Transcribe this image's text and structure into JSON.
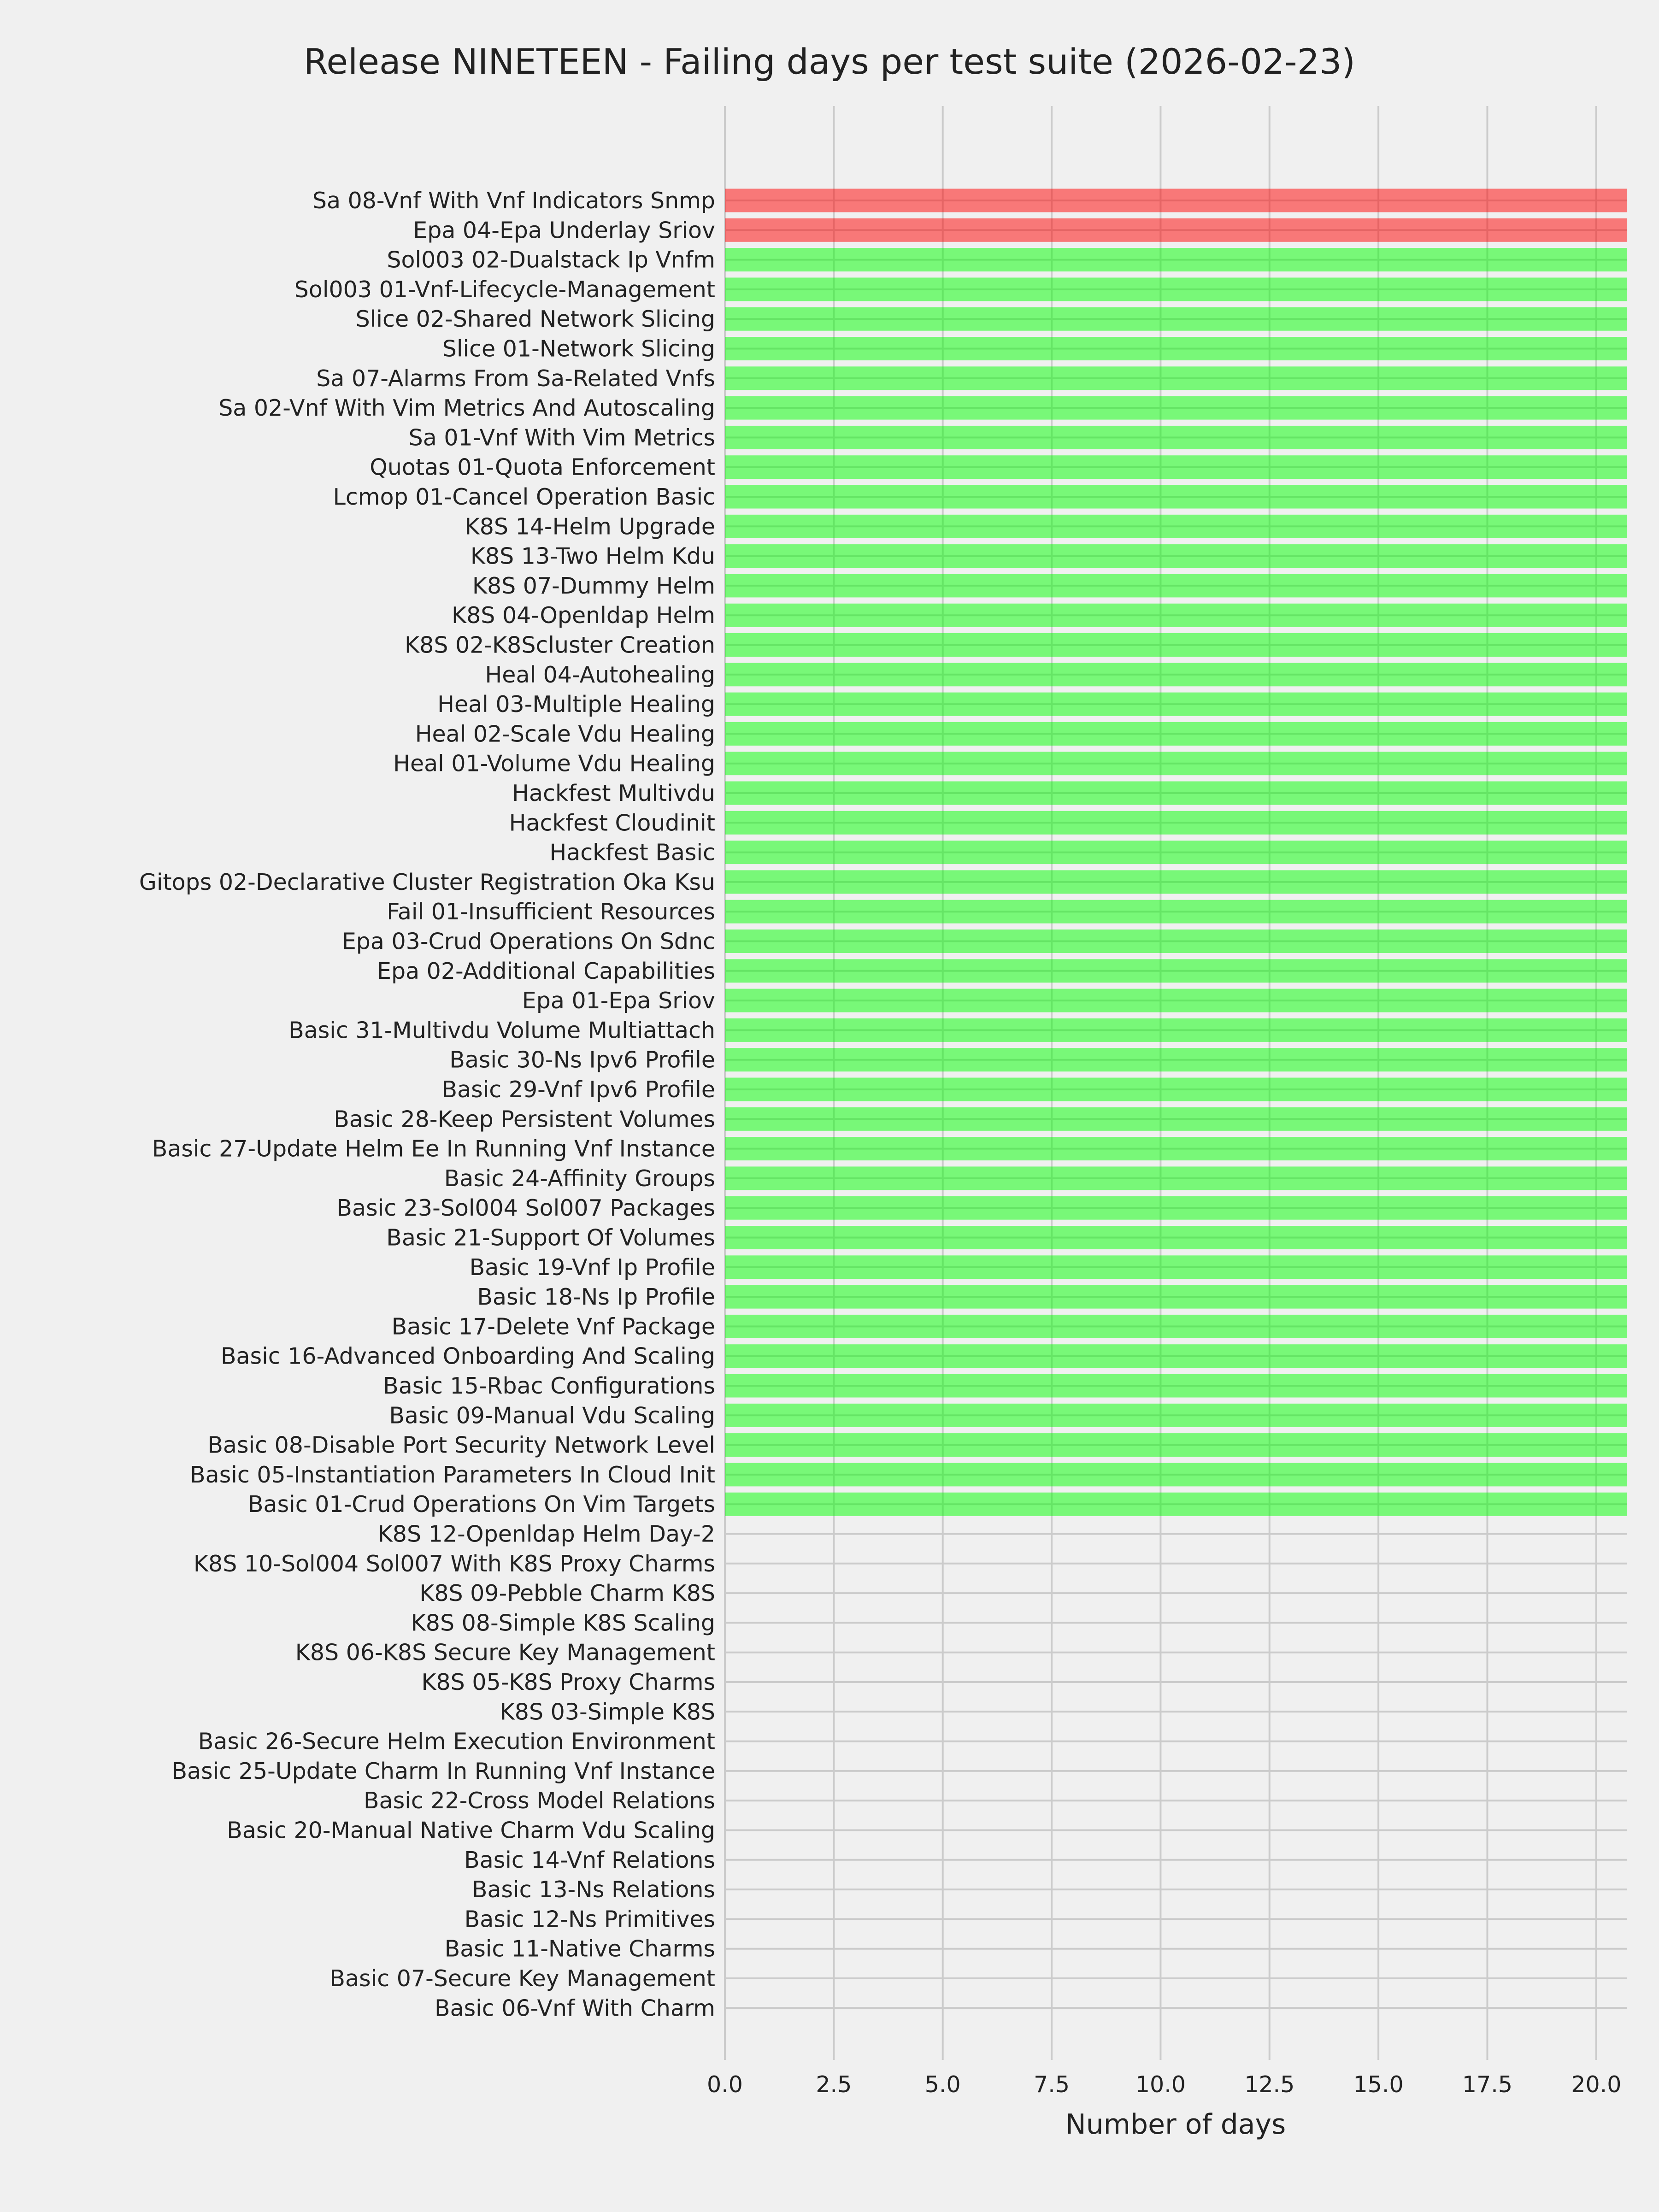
{
  "chart_data": {
    "type": "bar",
    "orientation": "horizontal",
    "title": "Release NINETEEN - Failing days per test suite (2026-02-23)",
    "xlabel": "Number of days",
    "ylabel": "",
    "xlim": [
      0,
      20.7
    ],
    "xticks": [
      "0.0",
      "2.5",
      "5.0",
      "7.5",
      "10.0",
      "12.5",
      "15.0",
      "17.5",
      "20.0"
    ],
    "grid": true,
    "colors": {
      "failing": "#f87878",
      "passing": "#78f878",
      "background": "#f0f0f0",
      "grid": "#cbcbcb"
    },
    "categories": [
      "Sa 08-Vnf With Vnf Indicators Snmp",
      "Epa 04-Epa Underlay Sriov",
      "Sol003 02-Dualstack Ip Vnfm",
      "Sol003 01-Vnf-Lifecycle-Management",
      "Slice 02-Shared Network Slicing",
      "Slice 01-Network Slicing",
      "Sa 07-Alarms From Sa-Related Vnfs",
      "Sa 02-Vnf With Vim Metrics And Autoscaling",
      "Sa 01-Vnf With Vim Metrics",
      "Quotas 01-Quota Enforcement",
      "Lcmop 01-Cancel Operation Basic",
      "K8S 14-Helm Upgrade",
      "K8S 13-Two Helm Kdu",
      "K8S 07-Dummy Helm",
      "K8S 04-Openldap Helm",
      "K8S 02-K8Scluster Creation",
      "Heal 04-Autohealing",
      "Heal 03-Multiple Healing",
      "Heal 02-Scale Vdu Healing",
      "Heal 01-Volume Vdu Healing",
      "Hackfest Multivdu",
      "Hackfest Cloudinit",
      "Hackfest Basic",
      "Gitops 02-Declarative Cluster Registration Oka Ksu",
      "Fail 01-Insufficient Resources",
      "Epa 03-Crud Operations On Sdnc",
      "Epa 02-Additional Capabilities",
      "Epa 01-Epa Sriov",
      "Basic 31-Multivdu Volume Multiattach",
      "Basic 30-Ns Ipv6 Profile",
      "Basic 29-Vnf Ipv6 Profile",
      "Basic 28-Keep Persistent Volumes",
      "Basic 27-Update Helm Ee In Running Vnf Instance",
      "Basic 24-Affinity Groups",
      "Basic 23-Sol004 Sol007 Packages",
      "Basic 21-Support Of Volumes",
      "Basic 19-Vnf Ip Profile",
      "Basic 18-Ns Ip Profile",
      "Basic 17-Delete Vnf Package",
      "Basic 16-Advanced Onboarding And Scaling",
      "Basic 15-Rbac Configurations",
      "Basic 09-Manual Vdu Scaling",
      "Basic 08-Disable Port Security Network Level",
      "Basic 05-Instantiation Parameters In Cloud Init",
      "Basic 01-Crud Operations On Vim Targets",
      "K8S 12-Openldap Helm Day-2",
      "K8S 10-Sol004 Sol007 With K8S Proxy Charms",
      "K8S 09-Pebble Charm K8S",
      "K8S 08-Simple K8S Scaling",
      "K8S 06-K8S Secure Key Management",
      "K8S 05-K8S Proxy Charms",
      "K8S 03-Simple K8S",
      "Basic 26-Secure Helm Execution Environment",
      "Basic 25-Update Charm In Running Vnf Instance",
      "Basic 22-Cross Model Relations",
      "Basic 20-Manual Native Charm Vdu Scaling",
      "Basic 14-Vnf Relations",
      "Basic 13-Ns Relations",
      "Basic 12-Ns Primitives",
      "Basic 11-Native Charms",
      "Basic 07-Secure Key Management",
      "Basic 06-Vnf With Charm"
    ],
    "values": [
      21,
      21,
      21,
      21,
      21,
      21,
      21,
      21,
      21,
      21,
      21,
      21,
      21,
      21,
      21,
      21,
      21,
      21,
      21,
      21,
      21,
      21,
      21,
      21,
      21,
      21,
      21,
      21,
      21,
      21,
      21,
      21,
      21,
      21,
      21,
      21,
      21,
      21,
      21,
      21,
      21,
      21,
      21,
      21,
      21,
      0,
      0,
      0,
      0,
      0,
      0,
      0,
      0,
      0,
      0,
      0,
      0,
      0,
      0,
      0,
      0,
      0
    ],
    "status": [
      "failing",
      "failing",
      "passing",
      "passing",
      "passing",
      "passing",
      "passing",
      "passing",
      "passing",
      "passing",
      "passing",
      "passing",
      "passing",
      "passing",
      "passing",
      "passing",
      "passing",
      "passing",
      "passing",
      "passing",
      "passing",
      "passing",
      "passing",
      "passing",
      "passing",
      "passing",
      "passing",
      "passing",
      "passing",
      "passing",
      "passing",
      "passing",
      "passing",
      "passing",
      "passing",
      "passing",
      "passing",
      "passing",
      "passing",
      "passing",
      "passing",
      "passing",
      "passing",
      "passing",
      "passing",
      "none",
      "none",
      "none",
      "none",
      "none",
      "none",
      "none",
      "none",
      "none",
      "none",
      "none",
      "none",
      "none",
      "none",
      "none",
      "none",
      "none"
    ]
  }
}
